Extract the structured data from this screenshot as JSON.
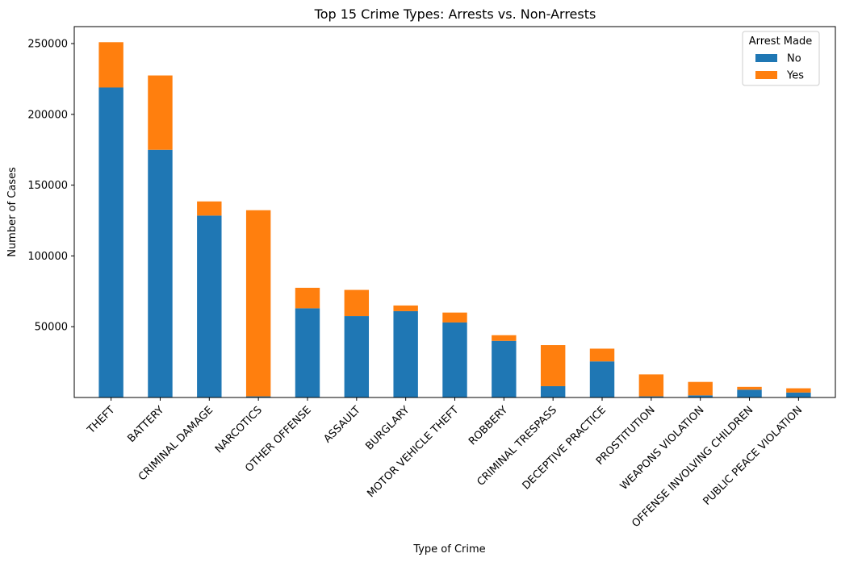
{
  "chart_data": {
    "type": "bar",
    "stacked": true,
    "title": "Top 15 Crime Types: Arrests vs. Non-Arrests",
    "xlabel": "Type of Crime",
    "ylabel": "Number of Cases",
    "categories": [
      "THEFT",
      "BATTERY",
      "CRIMINAL DAMAGE",
      "NARCOTICS",
      "OTHER OFFENSE",
      "ASSAULT",
      "BURGLARY",
      "MOTOR VEHICLE THEFT",
      "ROBBERY",
      "CRIMINAL TRESPASS",
      "DECEPTIVE PRACTICE",
      "PROSTITUTION",
      "WEAPONS VIOLATION",
      "OFFENSE INVOLVING CHILDREN",
      "PUBLIC PEACE VIOLATION"
    ],
    "series": [
      {
        "name": "No",
        "color": "#1f77b4",
        "values": [
          219000,
          175000,
          128500,
          800,
          63000,
          57500,
          61000,
          53000,
          40000,
          8000,
          25500,
          800,
          1500,
          5500,
          3500
        ]
      },
      {
        "name": "Yes",
        "color": "#ff7f0e",
        "values": [
          32000,
          52500,
          10000,
          131500,
          14500,
          18500,
          4000,
          7000,
          4000,
          29000,
          9000,
          15500,
          9500,
          2000,
          3000
        ]
      }
    ],
    "ylim": [
      0,
      262000
    ],
    "yticks": [
      50000,
      100000,
      150000,
      200000,
      250000
    ],
    "ytick_labels": [
      "50000",
      "100000",
      "150000",
      "200000",
      "250000"
    ],
    "legend": {
      "title": "Arrest Made",
      "position": "top-right"
    },
    "grid": false
  }
}
